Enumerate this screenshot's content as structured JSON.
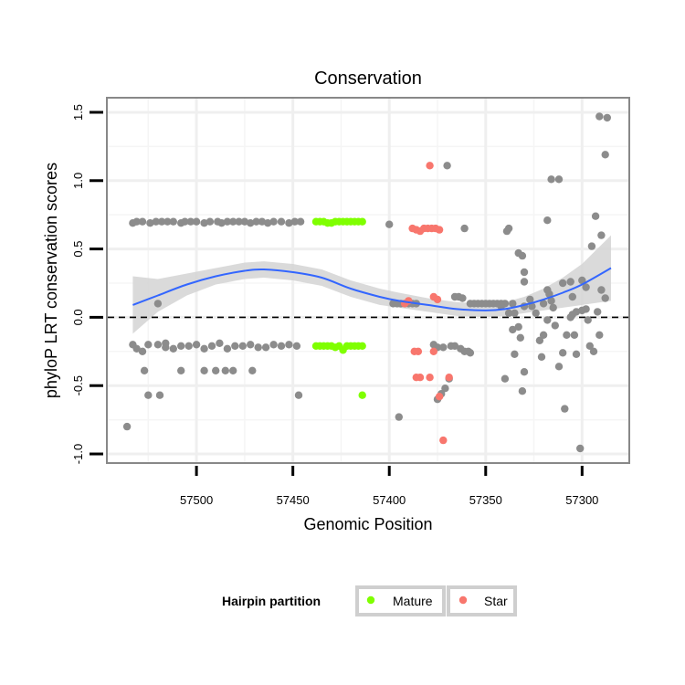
{
  "chart_data": {
    "type": "scatter",
    "title": "Conservation",
    "xlabel": "Genomic Position",
    "ylabel": "phyloP LRT conservation scores",
    "x_reversed": true,
    "xlim": [
      57546,
      57276
    ],
    "ylim": [
      -1.06,
      1.6
    ],
    "x_ticks": [
      57500,
      57450,
      57400,
      57350,
      57300
    ],
    "y_ticks": [
      -1.0,
      -0.5,
      0.0,
      0.5,
      1.0,
      1.5
    ],
    "x_tick_labels": [
      "57500",
      "57450",
      "57400",
      "57350",
      "57300"
    ],
    "y_tick_labels": [
      "-1.0",
      "-0.5",
      "0.0",
      "0.5",
      "1.0",
      "1.5"
    ],
    "grid": true,
    "reference_line": {
      "y": 0,
      "style": "dashed"
    },
    "legend": {
      "title": "Hairpin partition",
      "position": "bottom",
      "items": [
        {
          "label": "Mature",
          "color": "#7FFF00"
        },
        {
          "label": "Star",
          "color": "#F8766D"
        }
      ]
    },
    "colors": {
      "Other": "#8C8C8C",
      "Mature": "#7FFF00",
      "Star": "#F8766D",
      "smooth": "#3366FF",
      "band": "#D3D3D3"
    },
    "series": [
      {
        "name": "Other",
        "points": [
          [
            57533,
            0.69
          ],
          [
            57531,
            0.7
          ],
          [
            57528,
            0.7
          ],
          [
            57524,
            0.69
          ],
          [
            57521,
            0.7
          ],
          [
            57518,
            0.7
          ],
          [
            57515,
            0.7
          ],
          [
            57512,
            0.7
          ],
          [
            57508,
            0.69
          ],
          [
            57506,
            0.7
          ],
          [
            57503,
            0.7
          ],
          [
            57500,
            0.7
          ],
          [
            57496,
            0.69
          ],
          [
            57493,
            0.7
          ],
          [
            57489,
            0.7
          ],
          [
            57487,
            0.69
          ],
          [
            57484,
            0.7
          ],
          [
            57481,
            0.7
          ],
          [
            57478,
            0.7
          ],
          [
            57475,
            0.7
          ],
          [
            57472,
            0.69
          ],
          [
            57469,
            0.7
          ],
          [
            57466,
            0.7
          ],
          [
            57463,
            0.69
          ],
          [
            57460,
            0.7
          ],
          [
            57456,
            0.7
          ],
          [
            57452,
            0.69
          ],
          [
            57449,
            0.7
          ],
          [
            57446,
            0.7
          ],
          [
            57400,
            0.68
          ],
          [
            57533,
            -0.2
          ],
          [
            57531,
            -0.23
          ],
          [
            57528,
            -0.25
          ],
          [
            57525,
            -0.2
          ],
          [
            57520,
            -0.2
          ],
          [
            57516,
            -0.19
          ],
          [
            57512,
            -0.23
          ],
          [
            57508,
            -0.21
          ],
          [
            57504,
            -0.21
          ],
          [
            57500,
            -0.2
          ],
          [
            57496,
            -0.23
          ],
          [
            57492,
            -0.21
          ],
          [
            57488,
            -0.19
          ],
          [
            57484,
            -0.23
          ],
          [
            57480,
            -0.21
          ],
          [
            57476,
            -0.21
          ],
          [
            57472,
            -0.2
          ],
          [
            57468,
            -0.22
          ],
          [
            57464,
            -0.22
          ],
          [
            57460,
            -0.2
          ],
          [
            57456,
            -0.21
          ],
          [
            57452,
            -0.2
          ],
          [
            57448,
            -0.21
          ],
          [
            57536,
            -0.8
          ],
          [
            57527,
            -0.39
          ],
          [
            57525,
            -0.57
          ],
          [
            57519,
            -0.57
          ],
          [
            57516,
            -0.22
          ],
          [
            57508,
            -0.39
          ],
          [
            57496,
            -0.39
          ],
          [
            57490,
            -0.39
          ],
          [
            57485,
            -0.39
          ],
          [
            57481,
            -0.39
          ],
          [
            57471,
            -0.39
          ],
          [
            57447,
            -0.57
          ],
          [
            57520,
            0.1
          ],
          [
            57398,
            0.1
          ],
          [
            57396,
            0.1
          ],
          [
            57394,
            0.1
          ],
          [
            57392,
            0.1
          ],
          [
            57390,
            0.1
          ],
          [
            57388,
            0.1
          ],
          [
            57386,
            0.1
          ],
          [
            57366,
            0.15
          ],
          [
            57364,
            0.15
          ],
          [
            57362,
            0.14
          ],
          [
            57358,
            0.1
          ],
          [
            57356,
            0.1
          ],
          [
            57354,
            0.1
          ],
          [
            57352,
            0.1
          ],
          [
            57350,
            0.1
          ],
          [
            57348,
            0.1
          ],
          [
            57346,
            0.1
          ],
          [
            57344,
            0.1
          ],
          [
            57342,
            0.1
          ],
          [
            57395,
            -0.73
          ],
          [
            57375,
            -0.6
          ],
          [
            57373,
            -0.56
          ],
          [
            57371,
            -0.52
          ],
          [
            57369,
            -0.45
          ],
          [
            57377,
            -0.2
          ],
          [
            57375,
            -0.22
          ],
          [
            57372,
            -0.22
          ],
          [
            57368,
            -0.21
          ],
          [
            57366,
            -0.21
          ],
          [
            57363,
            -0.23
          ],
          [
            57361,
            -0.25
          ],
          [
            57359,
            -0.25
          ],
          [
            57358,
            -0.26
          ],
          [
            57370,
            1.11
          ],
          [
            57361,
            0.65
          ],
          [
            57339,
            0.63
          ],
          [
            57338,
            0.65
          ],
          [
            57333,
            0.47
          ],
          [
            57331,
            0.45
          ],
          [
            57330,
            0.33
          ],
          [
            57330,
            0.26
          ],
          [
            57335,
            0.03
          ],
          [
            57333,
            -0.07
          ],
          [
            57332,
            -0.15
          ],
          [
            57330,
            -0.4
          ],
          [
            57336,
            -0.09
          ],
          [
            57335,
            -0.27
          ],
          [
            57340,
            -0.45
          ],
          [
            57331,
            -0.54
          ],
          [
            57340,
            0.1
          ],
          [
            57336,
            0.1
          ],
          [
            57326,
            0.08
          ],
          [
            57324,
            0.03
          ],
          [
            57322,
            -0.17
          ],
          [
            57321,
            -0.29
          ],
          [
            57318,
            0.2
          ],
          [
            57317,
            0.17
          ],
          [
            57316,
            0.12
          ],
          [
            57318,
            0.71
          ],
          [
            57316,
            1.01
          ],
          [
            57312,
            1.01
          ],
          [
            57310,
            0.25
          ],
          [
            57312,
            -0.36
          ],
          [
            57309,
            -0.67
          ],
          [
            57306,
            0.26
          ],
          [
            57305,
            0.15
          ],
          [
            57305,
            0.02
          ],
          [
            57304,
            -0.13
          ],
          [
            57303,
            -0.27
          ],
          [
            57301,
            -0.96
          ],
          [
            57300,
            0.27
          ],
          [
            57298,
            0.06
          ],
          [
            57297,
            -0.02
          ],
          [
            57296,
            -0.21
          ],
          [
            57294,
            -0.25
          ],
          [
            57293,
            0.74
          ],
          [
            57290,
            0.6
          ],
          [
            57291,
            1.47
          ],
          [
            57287,
            1.46
          ],
          [
            57288,
            1.19
          ],
          [
            57290,
            0.2
          ],
          [
            57288,
            0.14
          ],
          [
            57292,
            0.04
          ],
          [
            57291,
            -0.13
          ],
          [
            57298,
            0.22
          ],
          [
            57300,
            0.05
          ],
          [
            57303,
            0.04
          ],
          [
            57306,
            0.0
          ],
          [
            57308,
            -0.13
          ],
          [
            57310,
            -0.26
          ],
          [
            57314,
            -0.06
          ],
          [
            57318,
            -0.02
          ],
          [
            57320,
            -0.13
          ],
          [
            57315,
            0.07
          ],
          [
            57320,
            0.1
          ],
          [
            57327,
            0.13
          ],
          [
            57330,
            0.08
          ],
          [
            57338,
            0.03
          ],
          [
            57342,
            0.08
          ],
          [
            57295,
            0.52
          ]
        ]
      },
      {
        "name": "Mature",
        "points": [
          [
            57438,
            0.7
          ],
          [
            57436,
            0.7
          ],
          [
            57434,
            0.7
          ],
          [
            57432,
            0.69
          ],
          [
            57430,
            0.69
          ],
          [
            57428,
            0.7
          ],
          [
            57426,
            0.7
          ],
          [
            57424,
            0.7
          ],
          [
            57422,
            0.7
          ],
          [
            57420,
            0.7
          ],
          [
            57418,
            0.7
          ],
          [
            57416,
            0.7
          ],
          [
            57414,
            0.7
          ],
          [
            57438,
            -0.21
          ],
          [
            57436,
            -0.21
          ],
          [
            57434,
            -0.21
          ],
          [
            57432,
            -0.21
          ],
          [
            57430,
            -0.21
          ],
          [
            57428,
            -0.22
          ],
          [
            57426,
            -0.21
          ],
          [
            57424,
            -0.24
          ],
          [
            57422,
            -0.21
          ],
          [
            57420,
            -0.21
          ],
          [
            57418,
            -0.21
          ],
          [
            57416,
            -0.21
          ],
          [
            57414,
            -0.21
          ],
          [
            57414,
            -0.57
          ]
        ]
      },
      {
        "name": "Star",
        "points": [
          [
            57388,
            0.65
          ],
          [
            57386,
            0.64
          ],
          [
            57384,
            0.63
          ],
          [
            57382,
            0.65
          ],
          [
            57380,
            0.65
          ],
          [
            57378,
            0.65
          ],
          [
            57376,
            0.65
          ],
          [
            57374,
            0.64
          ],
          [
            57379,
            1.11
          ],
          [
            57392,
            0.1
          ],
          [
            57390,
            0.12
          ],
          [
            57377,
            0.15
          ],
          [
            57375,
            0.13
          ],
          [
            57387,
            -0.25
          ],
          [
            57385,
            -0.25
          ],
          [
            57377,
            -0.25
          ],
          [
            57386,
            -0.44
          ],
          [
            57384,
            -0.44
          ],
          [
            57379,
            -0.44
          ],
          [
            57369,
            -0.44
          ],
          [
            57374,
            -0.58
          ],
          [
            57372,
            -0.9
          ]
        ]
      }
    ],
    "smooth": {
      "label": "loess fit",
      "x": [
        57533,
        57520,
        57505,
        57490,
        57475,
        57465,
        57450,
        57435,
        57420,
        57405,
        57395,
        57380,
        57365,
        57350,
        57340,
        57330,
        57320,
        57310,
        57300,
        57285
      ],
      "y": [
        0.09,
        0.16,
        0.24,
        0.3,
        0.34,
        0.35,
        0.33,
        0.29,
        0.21,
        0.15,
        0.12,
        0.09,
        0.06,
        0.05,
        0.06,
        0.09,
        0.13,
        0.18,
        0.24,
        0.36
      ],
      "lower": [
        -0.12,
        0.04,
        0.16,
        0.24,
        0.28,
        0.29,
        0.27,
        0.23,
        0.15,
        0.09,
        0.07,
        0.04,
        0.01,
        0.0,
        0.01,
        0.03,
        0.05,
        0.07,
        0.09,
        0.12
      ],
      "upper": [
        0.3,
        0.28,
        0.32,
        0.36,
        0.4,
        0.41,
        0.39,
        0.35,
        0.27,
        0.21,
        0.18,
        0.14,
        0.11,
        0.1,
        0.11,
        0.15,
        0.21,
        0.29,
        0.39,
        0.6
      ]
    }
  }
}
